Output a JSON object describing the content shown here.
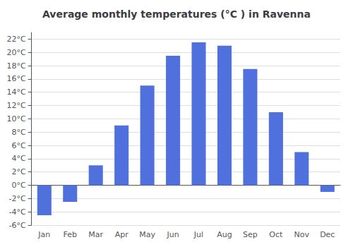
{
  "chart_data": {
    "type": "bar",
    "title": "Average monthly temperatures (°C ) in Ravenna",
    "categories": [
      "Jan",
      "Feb",
      "Mar",
      "Apr",
      "May",
      "Jun",
      "Jul",
      "Aug",
      "Sep",
      "Oct",
      "Nov",
      "Dec"
    ],
    "values": [
      -4.5,
      -2.5,
      3.0,
      9.0,
      15.0,
      19.5,
      21.5,
      21.0,
      17.5,
      11.0,
      5.0,
      -1.0
    ],
    "ylim": [
      -6,
      23
    ],
    "yticks": [
      {
        "value": -6,
        "label": "-6°C"
      },
      {
        "value": -4,
        "label": "-4°C"
      },
      {
        "value": -2,
        "label": "-2°C"
      },
      {
        "value": 0,
        "label": "0°C"
      },
      {
        "value": 2,
        "label": "2°C"
      },
      {
        "value": 4,
        "label": "4°C"
      },
      {
        "value": 6,
        "label": "6°C"
      },
      {
        "value": 8,
        "label": "8°C"
      },
      {
        "value": 10,
        "label": "10°C"
      },
      {
        "value": 12,
        "label": "12°C"
      },
      {
        "value": 14,
        "label": "14°C"
      },
      {
        "value": 16,
        "label": "16°C"
      },
      {
        "value": 18,
        "label": "18°C"
      },
      {
        "value": 20,
        "label": "20°C"
      },
      {
        "value": 22,
        "label": "22°C"
      }
    ],
    "grid": true
  }
}
